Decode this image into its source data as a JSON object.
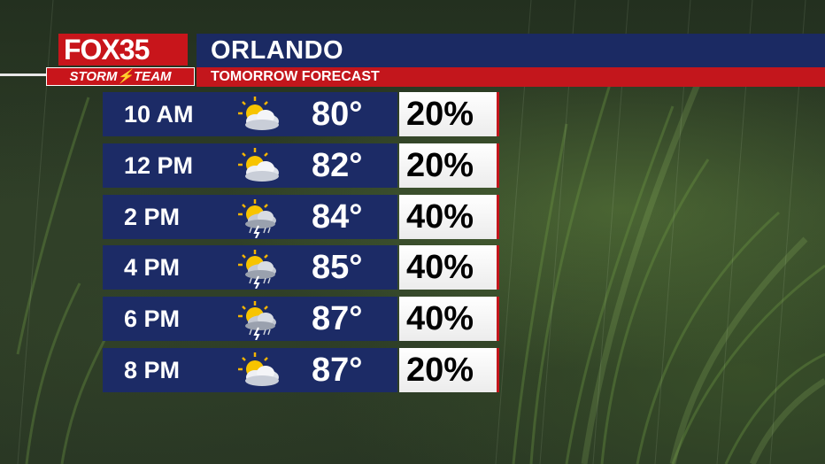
{
  "brand": {
    "fox": "FOX",
    "num": "35",
    "team": "STORM⚡TEAM"
  },
  "header": {
    "title": "ORLANDO",
    "subtitle": "TOMORROW FORECAST"
  },
  "colors": {
    "navy": "#1c2b66",
    "red": "#c3161c",
    "white": "#ffffff"
  },
  "rows": [
    {
      "time": "10 AM",
      "icon": "partly-sunny-icon",
      "temp": "80°",
      "chance": "20%"
    },
    {
      "time": "12 PM",
      "icon": "partly-sunny-icon",
      "temp": "82°",
      "chance": "20%"
    },
    {
      "time": "2 PM",
      "icon": "sun-thunderstorm-icon",
      "temp": "84°",
      "chance": "40%"
    },
    {
      "time": "4 PM",
      "icon": "sun-thunderstorm-icon",
      "temp": "85°",
      "chance": "40%"
    },
    {
      "time": "6 PM",
      "icon": "sun-thunderstorm-icon",
      "temp": "87°",
      "chance": "40%"
    },
    {
      "time": "8 PM",
      "icon": "partly-sunny-icon",
      "temp": "87°",
      "chance": "20%"
    }
  ]
}
